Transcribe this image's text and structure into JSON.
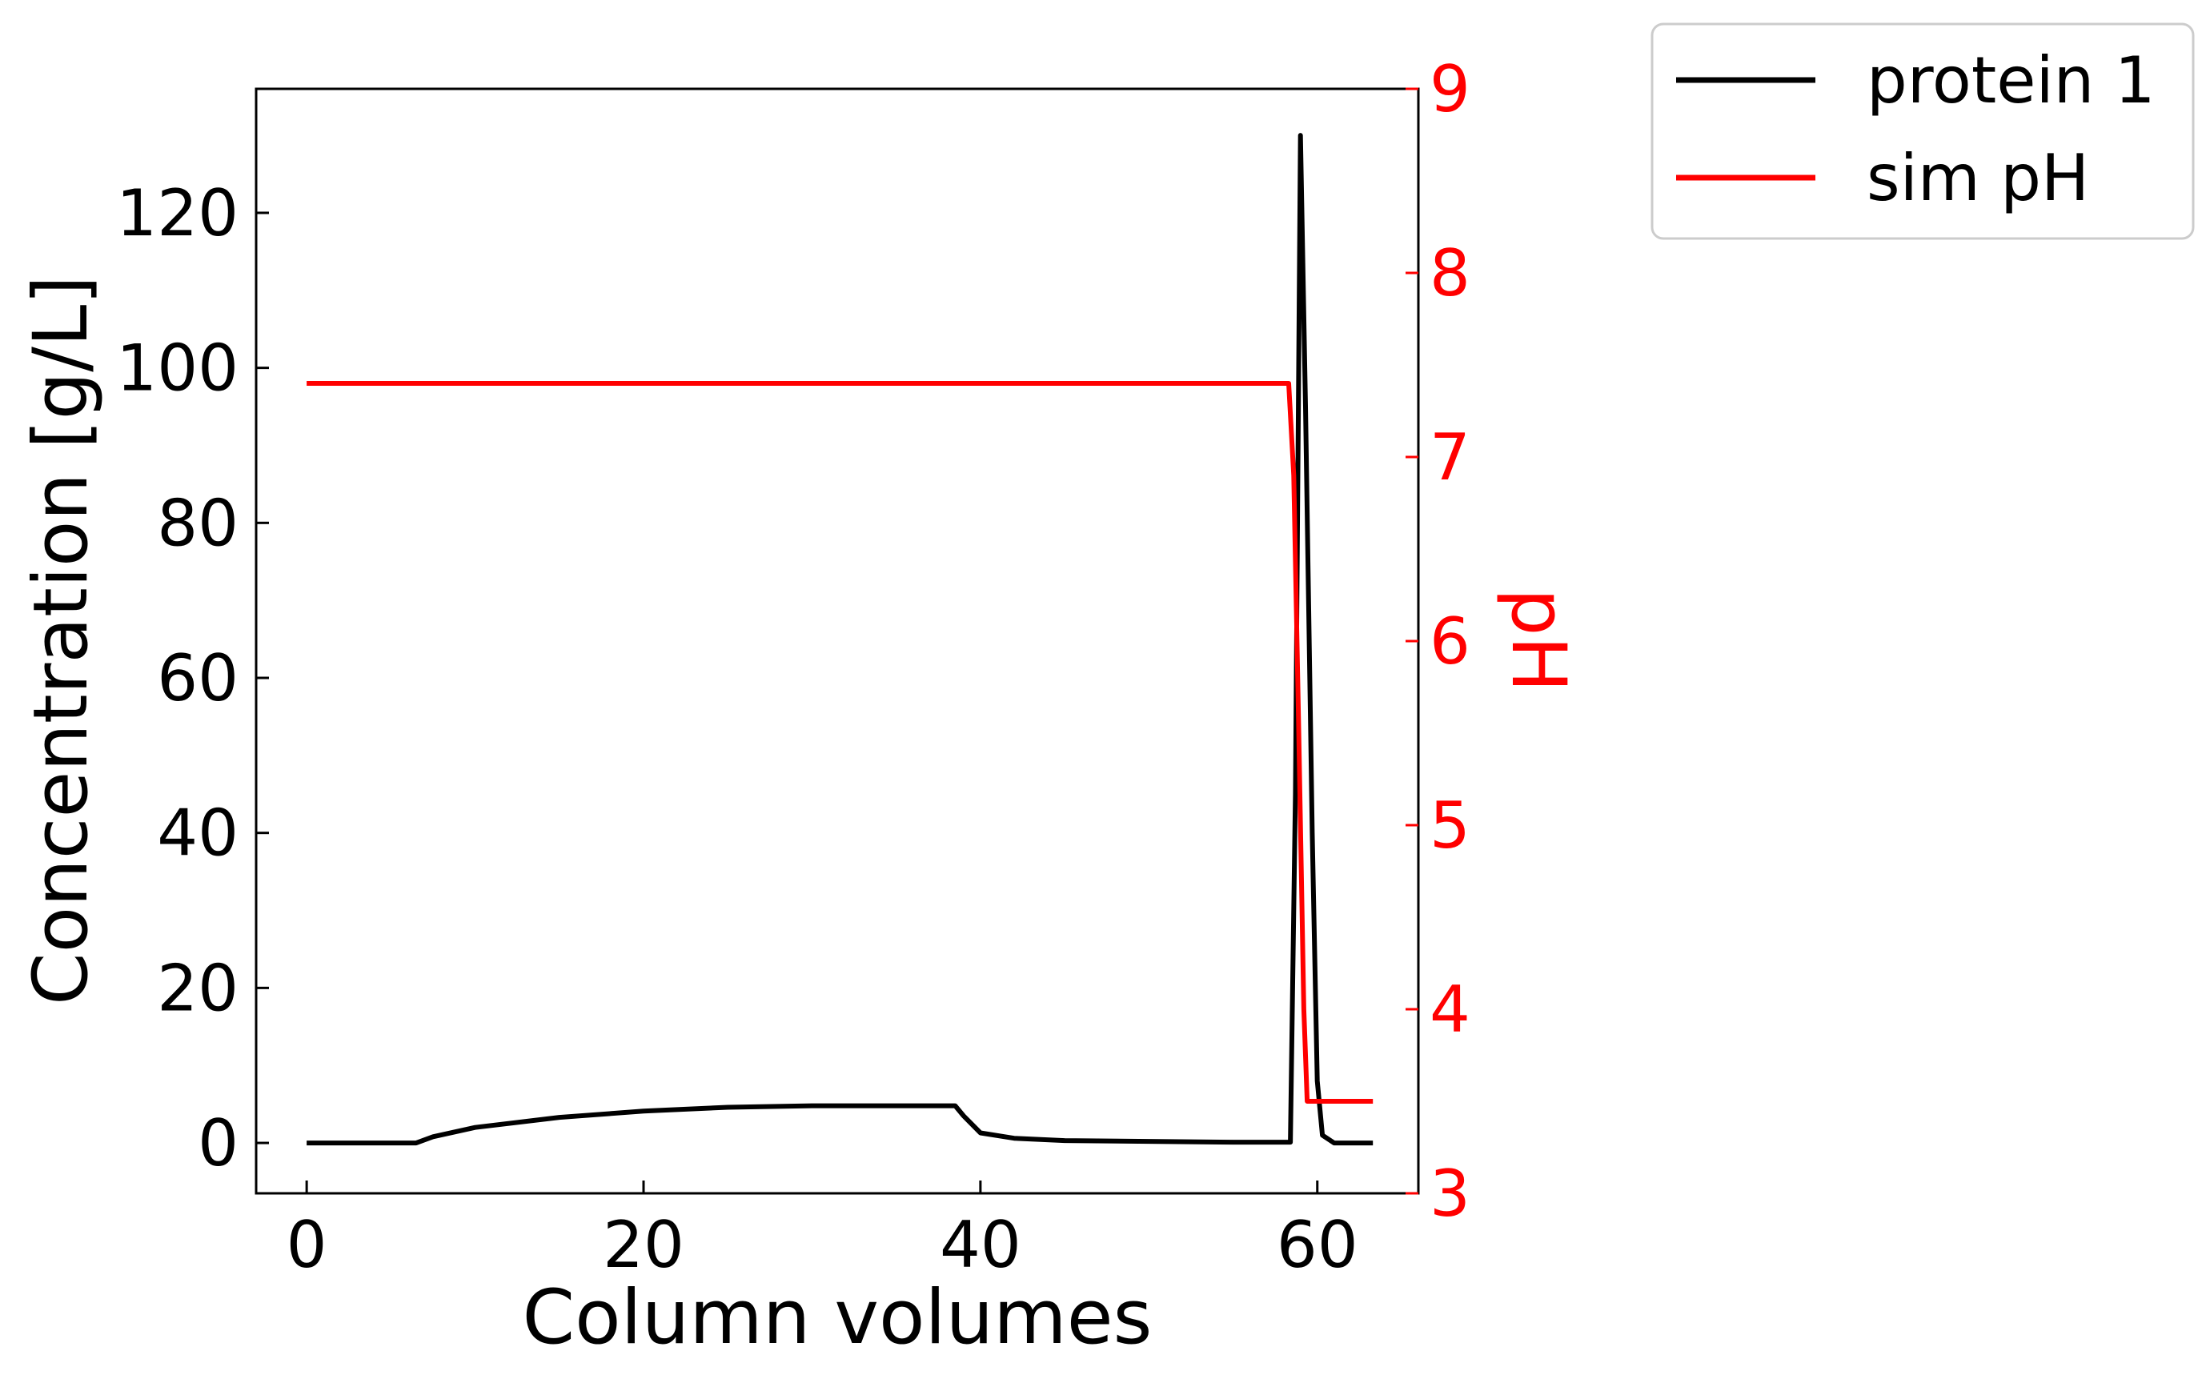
{
  "chart_data": {
    "type": "line",
    "xlabel": "Column volumes",
    "ylabel": "Concentration [g/L]",
    "y2label": "pH",
    "xlim": [
      -3,
      66
    ],
    "ylim": [
      -6.5,
      136
    ],
    "y2lim": [
      3,
      9
    ],
    "xticks": [
      0,
      20,
      40,
      60
    ],
    "yticks": [
      0,
      20,
      40,
      60,
      80,
      100,
      120
    ],
    "y2ticks": [
      3,
      4,
      5,
      6,
      7,
      8,
      9
    ],
    "legend_position": "outside top-right",
    "series": [
      {
        "name": "protein 1",
        "axis": "left",
        "color": "#000000",
        "x": [
          0,
          6.5,
          7.5,
          10,
          15,
          20,
          25,
          30,
          35,
          38.5,
          39,
          40,
          42,
          45,
          50,
          55,
          58.4,
          58.7,
          59.0,
          59.3,
          59.7,
          60.0,
          60.3,
          61,
          63.3
        ],
        "y": [
          0,
          0,
          0.8,
          2.0,
          3.3,
          4.1,
          4.6,
          4.8,
          4.8,
          4.8,
          3.5,
          1.3,
          0.6,
          0.3,
          0.2,
          0.1,
          0.1,
          45,
          130,
          95,
          40,
          8,
          1,
          0,
          0
        ]
      },
      {
        "name": "sim pH",
        "axis": "right",
        "color": "#ff0000",
        "x": [
          0,
          58.1,
          58.3,
          58.6,
          58.9,
          59.2,
          59.4,
          60.0,
          63.3
        ],
        "y": [
          7.4,
          7.4,
          7.4,
          6.9,
          5.5,
          4.0,
          3.5,
          3.5,
          3.5
        ]
      }
    ]
  }
}
